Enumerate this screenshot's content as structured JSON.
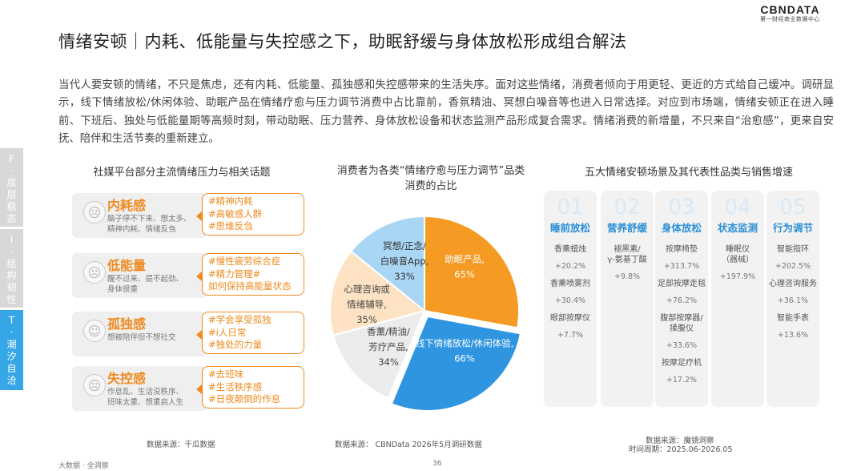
{
  "brand": {
    "logo": "CBNDATA",
    "sub": "第一财经商业数据中心"
  },
  "title": "情绪安顿｜内耗、低能量与失控感之下，助眠舒缓与身体放松形成组合解法",
  "paragraph": "当代人要安顿的情绪，不只是焦虑，还有内耗、低能量、孤独感和失控感带来的生活失序。面对这些情绪，消费者倾向于用更轻、更近的方式给自己缓冲。调研显示，线下情绪放松/休闲体验、助眠产品在情绪疗愈与压力调节消费中占比靠前，香氛精油、冥想白噪音等也进入日常选择。对应到市场端，情绪安顿正在进入睡前、下班后、独处与低能量期等高频时刻，带动助眠、压力营养、身体放松设备和状态监测产品形成复合需求。情绪消费的新增量，不只来自“治愈感”，更来自安抚、陪伴和生活节奏的重新建立。",
  "side_tabs": [
    {
      "lines": [
        "F",
        "·",
        "底",
        "层",
        "稳",
        "态"
      ]
    },
    {
      "lines": [
        "I",
        "·",
        "结",
        "构",
        "韧",
        "性"
      ]
    },
    {
      "lines": [
        "T",
        "·",
        "潮",
        "汐",
        "自",
        "洽"
      ]
    }
  ],
  "left_panel": {
    "heading": "社媒平台部分主流情绪压力与相关话题",
    "source": "数据来源：千瓜数据",
    "rows": [
      {
        "name": "内耗感",
        "icon": "anxious-face-icon",
        "desc": [
          "脑子停不下来、想太多、",
          "精神内耗、情绪反刍"
        ],
        "tags": [
          "#精神内耗",
          "#高敏感人群",
          "#思维反刍"
        ]
      },
      {
        "name": "低能量",
        "icon": "tired-face-icon",
        "desc": [
          "醒不过来、提不起劲、",
          "身体很重"
        ],
        "tags": [
          "#慢性疲劳综合症",
          "#精力管理#",
          "如何保持高能量状态"
        ]
      },
      {
        "name": "孤独感",
        "icon": "lonely-person-icon",
        "desc": [
          "想被陪伴但不想社交"
        ],
        "tags": [
          "#学会享受孤独",
          "#i人日常",
          "#独处的力量"
        ]
      },
      {
        "name": "失控感",
        "icon": "frustrated-face-icon",
        "desc": [
          "作息乱、生活没秩序、",
          "班味太重、想重启人生"
        ],
        "tags": [
          "#去班味",
          "#生活秩序感",
          "#日夜颠倒的作息"
        ]
      }
    ]
  },
  "pie_panel": {
    "heading_line1": "消费者为各类“情绪疗愈与压力调节”品类",
    "heading_line2": "消费的占比",
    "source": "数据来源：   CBNData 2026年5月调研数据"
  },
  "chart_data": {
    "type": "pie",
    "title": "消费者为各类“情绪疗愈与压力调节”品类消费的占比",
    "series": [
      {
        "label_lines": [
          "助眠产品,",
          "65%"
        ],
        "value": 65,
        "color": "#f59a23",
        "text_color": "#ffffff"
      },
      {
        "label_lines": [
          "线下情绪放松/休闲体验,",
          "66%"
        ],
        "value": 66,
        "color": "#2f95e0",
        "text_color": "#ffffff"
      },
      {
        "label_lines": [
          "香薰/精油/",
          "芳疗产品,",
          "34%"
        ],
        "value": 34,
        "color": "#ececec",
        "text_color": "#444444"
      },
      {
        "label_lines": [
          "心理咨询或",
          "情绪辅导,",
          "35%"
        ],
        "value": 35,
        "color": "#fde3c4",
        "text_color": "#444444"
      },
      {
        "label_lines": [
          "冥想/正念/",
          "白噪音App,",
          "33%"
        ],
        "value": 33,
        "color": "#a9d6f5",
        "text_color": "#333333"
      }
    ]
  },
  "scenario_panel": {
    "heading": "五大情绪安顿场景及其代表性品类与销售增速",
    "source_line1": "数据来源：魔镜洞察",
    "source_line2": "时间周期：2025.06-2026.05",
    "columns": [
      {
        "num": "01",
        "title": "睡前放松",
        "items": [
          {
            "name": [
              "香薰蜡烛"
            ],
            "growth": "+20.2%"
          },
          {
            "name": [
              "香薰喷雾剂"
            ],
            "growth": "+30.4%"
          },
          {
            "name": [
              "眼部按摩仪"
            ],
            "growth": "+7.7%"
          }
        ]
      },
      {
        "num": "02",
        "title": "营养舒缓",
        "items": [
          {
            "name": [
              "褪黑素/",
              "γ-氨基丁酸"
            ],
            "growth": "+9.8%"
          }
        ]
      },
      {
        "num": "03",
        "title": "身体放松",
        "items": [
          {
            "name": [
              "按摩椅垫"
            ],
            "growth": "+313.7%"
          },
          {
            "name": [
              "足部按摩走毯"
            ],
            "growth": "+76.2%"
          },
          {
            "name": [
              "腹部按摩器/",
              "揉腹仪"
            ],
            "growth": "+33.6%"
          },
          {
            "name": [
              "按摩足疗机"
            ],
            "growth": "+17.2%"
          }
        ]
      },
      {
        "num": "04",
        "title": "状态监测",
        "items": [
          {
            "name": [
              "睡眠仪",
              "（器械）"
            ],
            "growth": "+197.9%"
          }
        ]
      },
      {
        "num": "05",
        "title": "行为调节",
        "items": [
          {
            "name": [
              "智能指环"
            ],
            "growth": "+202.5%"
          },
          {
            "name": [
              "心理咨询服务"
            ],
            "growth": "+36.1%"
          },
          {
            "name": [
              "智能手表"
            ],
            "growth": "+13.6%"
          }
        ]
      }
    ]
  },
  "footer": {
    "left": "大数据 · 全洞察",
    "page": "36"
  }
}
